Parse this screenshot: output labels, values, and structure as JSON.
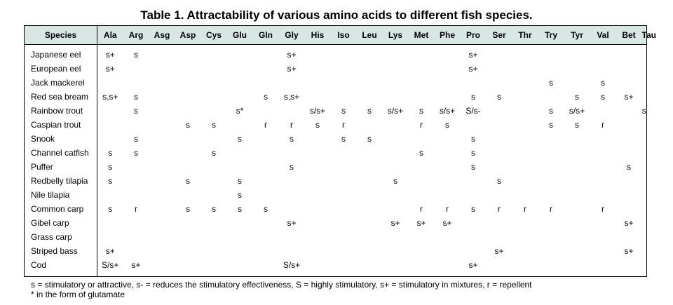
{
  "title": "Table 1. Attractability of various amino acids to different fish species.",
  "columns": [
    "Species",
    "Ala",
    "Arg",
    "Asg",
    "Asp",
    "Cys",
    "Glu",
    "Gln",
    "Gly",
    "His",
    "Iso",
    "Leu",
    "Lys",
    "Met",
    "Phe",
    "Pro",
    "Ser",
    "Thr",
    "Try",
    "Tyr",
    "Val",
    "Bet",
    "Tau"
  ],
  "rows": [
    [
      "Japanese eel",
      "s+",
      "s",
      "",
      "",
      "",
      "",
      "",
      "s+",
      "",
      "",
      "",
      "",
      "",
      "",
      "s+",
      "",
      "",
      "",
      "",
      "",
      "",
      ""
    ],
    [
      "European eel",
      "s+",
      "",
      "",
      "",
      "",
      "",
      "",
      "s+",
      "",
      "",
      "",
      "",
      "",
      "",
      "s+",
      "",
      "",
      "",
      "",
      "",
      "",
      ""
    ],
    [
      "Jack mackerel",
      "",
      "",
      "",
      "",
      "",
      "",
      "",
      "",
      "",
      "",
      "",
      "",
      "",
      "",
      "",
      "",
      "",
      "s",
      "",
      "s",
      "",
      ""
    ],
    [
      "Red sea bream",
      "s,s+",
      "s",
      "",
      "",
      "",
      "",
      "s",
      "s,s+",
      "",
      "",
      "",
      "",
      "",
      "",
      "s",
      "s",
      "",
      "",
      "s",
      "s",
      "s+",
      ""
    ],
    [
      "Rainbow trout",
      "",
      "s",
      "",
      "",
      "",
      "s*",
      "",
      "",
      "s/s+",
      "s",
      "s",
      "s/s+",
      "s",
      "s/s+",
      "S/s-",
      "",
      "",
      "s",
      "s/s+",
      "",
      "",
      "s"
    ],
    [
      "Caspian trout",
      "",
      "",
      "",
      "s",
      "s",
      "",
      "r",
      "r",
      "s",
      "r",
      "",
      "",
      "r",
      "s",
      "",
      "",
      "",
      "s",
      "s",
      "r",
      "",
      ""
    ],
    [
      "Snook",
      "",
      "s",
      "",
      "",
      "",
      "s",
      "",
      "s",
      "",
      "s",
      "s",
      "",
      "",
      "",
      "s",
      "",
      "",
      "",
      "",
      "",
      "",
      ""
    ],
    [
      "Channel catfish",
      "s",
      "s",
      "",
      "",
      "s",
      "",
      "",
      "",
      "",
      "",
      "",
      "",
      "s",
      "",
      "s",
      "",
      "",
      "",
      "",
      "",
      "",
      ""
    ],
    [
      "Puffer",
      "s",
      "",
      "",
      "",
      "",
      "",
      "",
      "s",
      "",
      "",
      "",
      "",
      "",
      "",
      "s",
      "",
      "",
      "",
      "",
      "",
      "s",
      ""
    ],
    [
      "Redbelly tilapia",
      "s",
      "",
      "",
      "s",
      "",
      "s",
      "",
      "",
      "",
      "",
      "",
      "s",
      "",
      "",
      "",
      "s",
      "",
      "",
      "",
      "",
      "",
      ""
    ],
    [
      "Nile tilapia",
      "",
      "",
      "",
      "",
      "",
      "s",
      "",
      "",
      "",
      "",
      "",
      "",
      "",
      "",
      "",
      "",
      "",
      "",
      "",
      "",
      "",
      ""
    ],
    [
      "Common carp",
      "s",
      "r",
      "",
      "s",
      "s",
      "s",
      "s",
      "",
      "",
      "",
      "",
      "",
      "r",
      "r",
      "s",
      "r",
      "r",
      "r",
      "",
      "r",
      "",
      ""
    ],
    [
      "Gibel carp",
      "",
      "",
      "",
      "",
      "",
      "",
      "",
      "s+",
      "",
      "",
      "",
      "s+",
      "s+",
      "s+",
      "",
      "",
      "",
      "",
      "",
      "",
      "s+",
      ""
    ],
    [
      "Grass carp",
      "",
      "",
      "",
      "",
      "",
      "",
      "",
      "",
      "",
      "",
      "",
      "",
      "",
      "",
      "",
      "",
      "",
      "",
      "",
      "",
      "",
      ""
    ],
    [
      "Striped bass",
      "s+",
      "",
      "",
      "",
      "",
      "",
      "",
      "",
      "",
      "",
      "",
      "",
      "",
      "",
      "",
      "s+",
      "",
      "",
      "",
      "",
      "s+",
      ""
    ],
    [
      "Cod",
      "S/s+",
      "s+",
      "",
      "",
      "",
      "",
      "",
      "S/s+",
      "",
      "",
      "",
      "",
      "",
      "",
      "s+",
      "",
      "",
      "",
      "",
      "",
      "",
      ""
    ]
  ],
  "footnotes": [
    "s = stimulatory or attractive, s- = reduces the stimulatory effectiveness, S = highly stimulatory, s+ = stimulatory in mixtures, r = repellent",
    "* in the form of glutamate"
  ]
}
